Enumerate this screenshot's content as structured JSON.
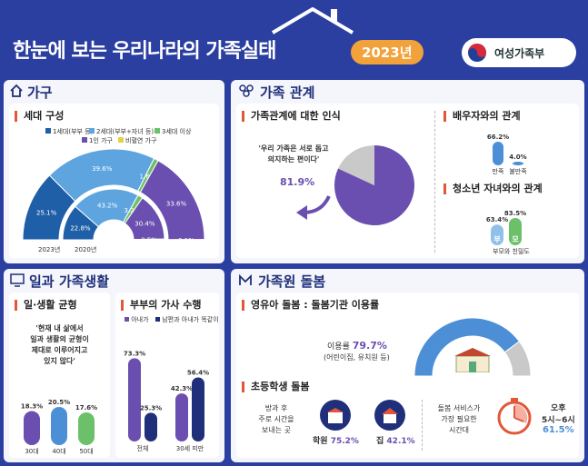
{
  "header": {
    "title": "한눈에 보는 우리나라의 가족실태",
    "year": "2023년",
    "ministry": "여성가족부"
  },
  "sections": {
    "household": "가구",
    "relations": "가족 관계",
    "work": "일과 가족생활",
    "care": "가족원 돌봄"
  },
  "colors": {
    "purple": "#6a4fb0",
    "blue": "#4d8fd6",
    "lightblue": "#8fc0ea",
    "green": "#6dc06a",
    "gray": "#c9c9c9",
    "navy": "#1f2f7a",
    "orange": "#f2a23a"
  },
  "generation": {
    "subtitle": "세대 구성",
    "legend": [
      {
        "label": "1세대(부부 등)",
        "color": "#1f5fa8"
      },
      {
        "label": "2세대(부부+자녀 등)",
        "color": "#5ea5e0"
      },
      {
        "label": "3세대 이상",
        "color": "#6dc06a"
      },
      {
        "label": "1인 가구",
        "color": "#6a4fb0"
      },
      {
        "label": "비혈연 가구",
        "color": "#e2d24a"
      }
    ],
    "years": [
      "2023년",
      "2020년"
    ]
  },
  "chart_data": [
    {
      "type": "pie",
      "title": "세대 구성",
      "variant": "half-donut",
      "series": [
        {
          "name": "2023년",
          "values": [
            25.1,
            39.6,
            1.6,
            33.6,
            0.1
          ]
        },
        {
          "name": "2020년",
          "values": [
            22.8,
            43.2,
            3.2,
            30.4,
            0.5
          ]
        }
      ],
      "categories": [
        "1세대(부부 등)",
        "2세대(부부+자녀 등)",
        "3세대 이상",
        "1인 가구",
        "비혈연 가구"
      ]
    },
    {
      "type": "pie",
      "title": "가족관계에 대한 인식",
      "values": [
        81.9,
        18.1
      ],
      "categories": [
        "동의",
        "기타"
      ]
    },
    {
      "type": "bar",
      "title": "배우자와의 관계",
      "categories": [
        "만족",
        "불만족"
      ],
      "values": [
        66.2,
        4.0
      ]
    },
    {
      "type": "bar",
      "title": "청소년 자녀와의 관계",
      "categories": [
        "부",
        "모"
      ],
      "values": [
        63.4,
        83.5
      ],
      "xlabel": "부모와 친밀도"
    },
    {
      "type": "bar",
      "title": "일·생활 균형",
      "categories": [
        "30대",
        "40대",
        "50대"
      ],
      "values": [
        18.3,
        20.5,
        17.6
      ]
    },
    {
      "type": "bar",
      "title": "부부의 가사 수행",
      "categories": [
        "전체",
        "30세 미만"
      ],
      "series": [
        {
          "name": "아내가",
          "values": [
            73.3,
            42.3
          ]
        },
        {
          "name": "남편과 아내가 똑같이",
          "values": [
            25.3,
            56.4
          ]
        }
      ]
    },
    {
      "type": "pie",
      "title": "영유아 돌봄 : 돌봄기관 이용률",
      "variant": "half-donut",
      "values": [
        79.7,
        20.3
      ]
    }
  ],
  "relations": {
    "perception_title": "가족관계에 대한 인식",
    "quote_line1": "'우리 가족은 서로 돕고",
    "quote_line2": "의지하는 편이다'",
    "pct": "81.9%",
    "spouse_title": "배우자와의 관계",
    "spouse_vals": [
      "66.2%",
      "4.0%"
    ],
    "spouse_labels": [
      "만족",
      "불만족"
    ],
    "teen_title": "청소년 자녀와의 관계",
    "teen_vals": [
      "63.4%",
      "83.5%"
    ],
    "teen_labels": [
      "부",
      "모"
    ],
    "teen_caption": "부모와 친밀도"
  },
  "work": {
    "balance_title": "일·생활 균형",
    "quote": [
      "'현재 내 삶에서",
      "일과 생활의 균형이",
      "제대로 이루어지고",
      "있지 않다'"
    ],
    "balance_vals": [
      "18.3%",
      "20.5%",
      "17.6%"
    ],
    "balance_labels": [
      "30대",
      "40대",
      "50대"
    ],
    "chores_title": "부부의 가사 수행",
    "chores_legend": [
      "아내가",
      "남편과 아내가 똑같이"
    ],
    "chores_vals": [
      "73.3%",
      "25.3%",
      "42.3%",
      "56.4%"
    ],
    "chores_labels": [
      "전체",
      "30세 미만"
    ]
  },
  "care": {
    "infant_title": "영유아 돌봄 : 돌봄기관 이용률",
    "usage_label": "이용률",
    "usage_val": "79.7%",
    "usage_note": "(어린이집, 유치원 등)",
    "school_title": "초등학생 돌봄",
    "after_school": [
      "방과 후",
      "주로 시간을",
      "보내는 곳"
    ],
    "academy": "학원",
    "academy_val": "75.2%",
    "home": "집",
    "home_val": "42.1%",
    "need_time": [
      "돌봄 서비스가",
      "가장 필요한",
      "시간대"
    ],
    "time_label1": "오후",
    "time_label2": "5시~6시",
    "time_val": "61.5%"
  }
}
